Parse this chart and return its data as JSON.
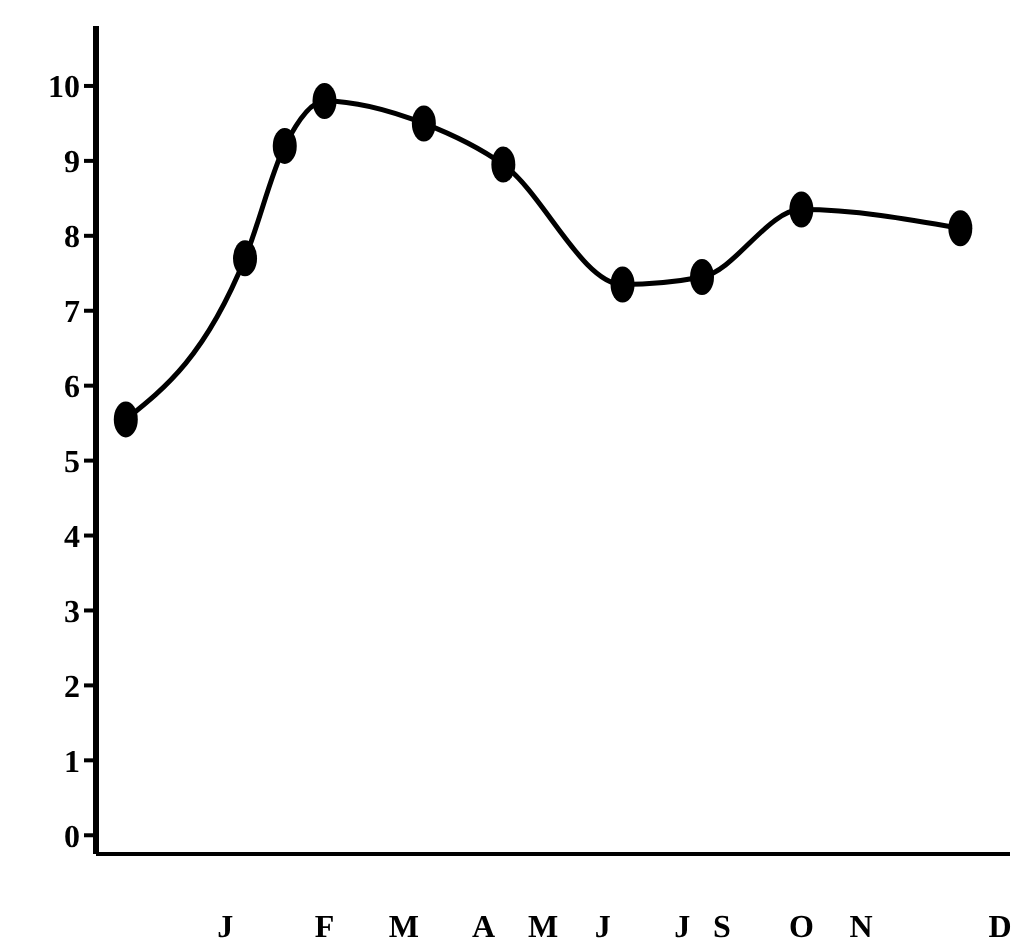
{
  "chart_data": {
    "type": "line",
    "categories": [
      null,
      null,
      null,
      null,
      null,
      null,
      "J",
      null,
      null,
      null,
      null,
      "F",
      null,
      null,
      null,
      "M",
      null,
      null,
      null,
      "A",
      null,
      null,
      "M",
      null,
      null,
      "J",
      null,
      null,
      null,
      "J",
      null,
      "S",
      null,
      null,
      null,
      "O",
      null,
      null,
      "N",
      null,
      null,
      null,
      null,
      null,
      null,
      "D"
    ],
    "series": [
      {
        "color": "#000000",
        "values": [
          null,
          5.55,
          null,
          null,
          null,
          null,
          null,
          7.7,
          null,
          9.2,
          null,
          9.8,
          null,
          null,
          null,
          null,
          9.5,
          null,
          null,
          null,
          8.95,
          null,
          null,
          null,
          null,
          null,
          7.35,
          null,
          null,
          null,
          7.45,
          null,
          null,
          null,
          null,
          8.35,
          null,
          null,
          null,
          null,
          null,
          null,
          null,
          8.1,
          null,
          null
        ]
      }
    ],
    "ylim": [
      -0.25,
      10.8
    ],
    "yticks": [
      0,
      1,
      2,
      3,
      4,
      5,
      6,
      7,
      8,
      9,
      10
    ],
    "grid": false,
    "legend": false,
    "marker": "circle",
    "line_style": "solid"
  }
}
